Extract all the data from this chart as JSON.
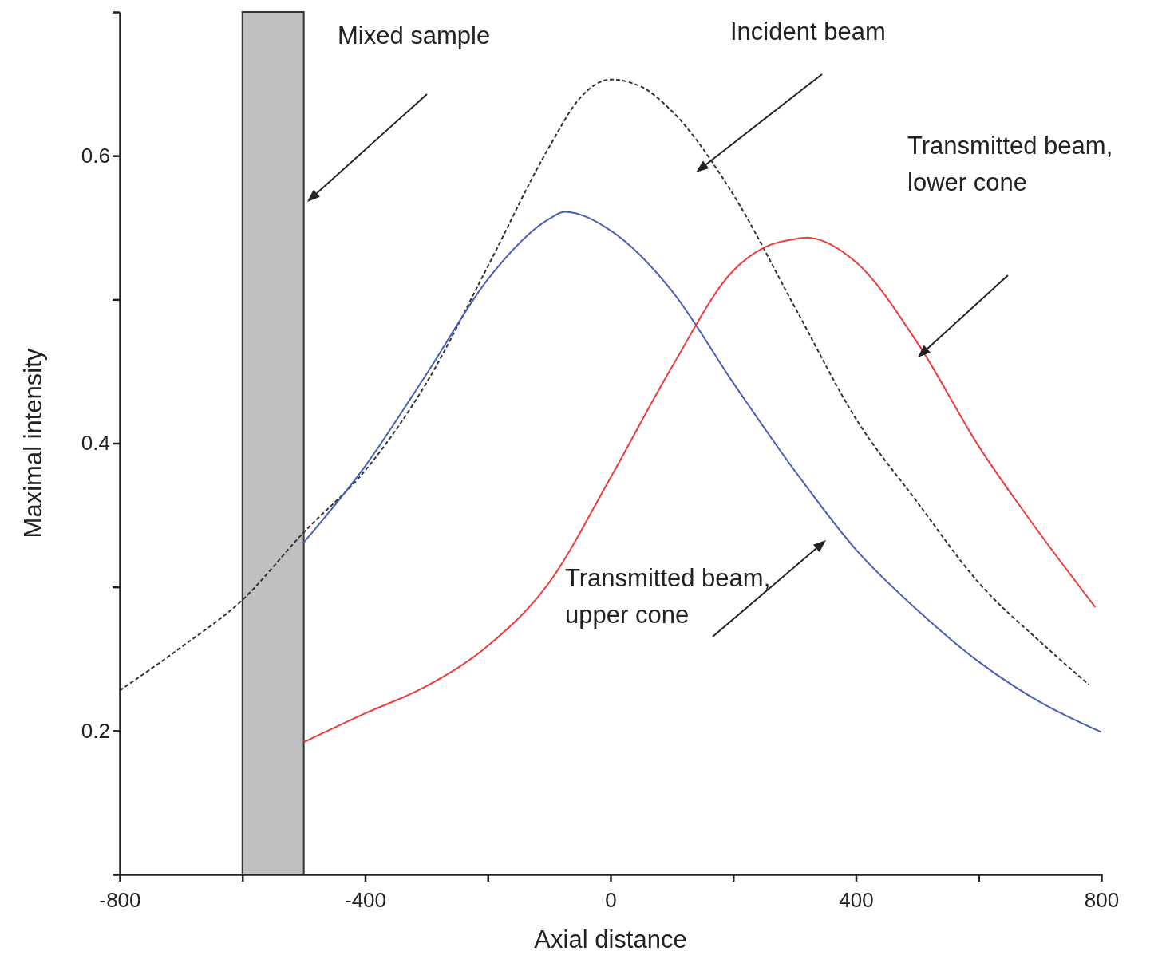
{
  "chart_data": {
    "type": "line",
    "xlabel": "Axial distance",
    "ylabel": "Maximal intensity",
    "xlim": [
      -800,
      800
    ],
    "ylim": [
      0.1,
      0.7
    ],
    "xticks": [
      -800,
      {
        "value": -600,
        "label": null
      },
      -400,
      {
        "value": -200,
        "label": null
      },
      0,
      {
        "value": 200,
        "label": null
      },
      400,
      {
        "value": 600,
        "label": null
      },
      800
    ],
    "yticks": [
      {
        "value": 0.1,
        "label": null
      },
      0.2,
      {
        "value": 0.3,
        "label": null
      },
      0.4,
      {
        "value": 0.5,
        "label": null
      },
      0.6,
      {
        "value": 0.7,
        "label": null
      }
    ],
    "grid": false,
    "marker": "none",
    "series": [
      {
        "color": "#333333",
        "line_style": "dashed",
        "x": [
          -800,
          -700,
          -600,
          -500,
          -400,
          -300,
          -200,
          -100,
          -50,
          0,
          50,
          100,
          200,
          300,
          400,
          500,
          600,
          700,
          780
        ],
        "values": [
          0.228,
          0.258,
          0.291,
          0.338,
          0.381,
          0.442,
          0.523,
          0.606,
          0.64,
          0.653,
          0.648,
          0.631,
          0.573,
          0.495,
          0.417,
          0.359,
          0.303,
          0.262,
          0.232
        ]
      },
      {
        "color": "#4a5fb8",
        "line_style": "solid",
        "x": [
          -500,
          -400,
          -300,
          -200,
          -100,
          -75,
          0,
          100,
          200,
          300,
          400,
          500,
          600,
          700,
          800
        ],
        "values": [
          0.331,
          0.384,
          0.448,
          0.514,
          0.556,
          0.561,
          0.548,
          0.506,
          0.442,
          0.381,
          0.326,
          0.284,
          0.248,
          0.22,
          0.199
        ]
      },
      {
        "color": "#f03a3a",
        "line_style": "solid",
        "x": [
          -500,
          -400,
          -300,
          -200,
          -100,
          0,
          100,
          200,
          250,
          300,
          320,
          400,
          500,
          600,
          700,
          790
        ],
        "values": [
          0.192,
          0.212,
          0.231,
          0.259,
          0.303,
          0.376,
          0.453,
          0.52,
          0.536,
          0.542,
          0.543,
          0.526,
          0.47,
          0.398,
          0.337,
          0.286
        ]
      }
    ],
    "bands": [
      {
        "axis": "x",
        "from": -600,
        "to": -500,
        "color": "#c0c0c0"
      }
    ],
    "annotations": [
      "Mixed sample",
      "Incident beam",
      "Transmitted beam, lower cone",
      "Transmitted beam, upper cone"
    ]
  }
}
